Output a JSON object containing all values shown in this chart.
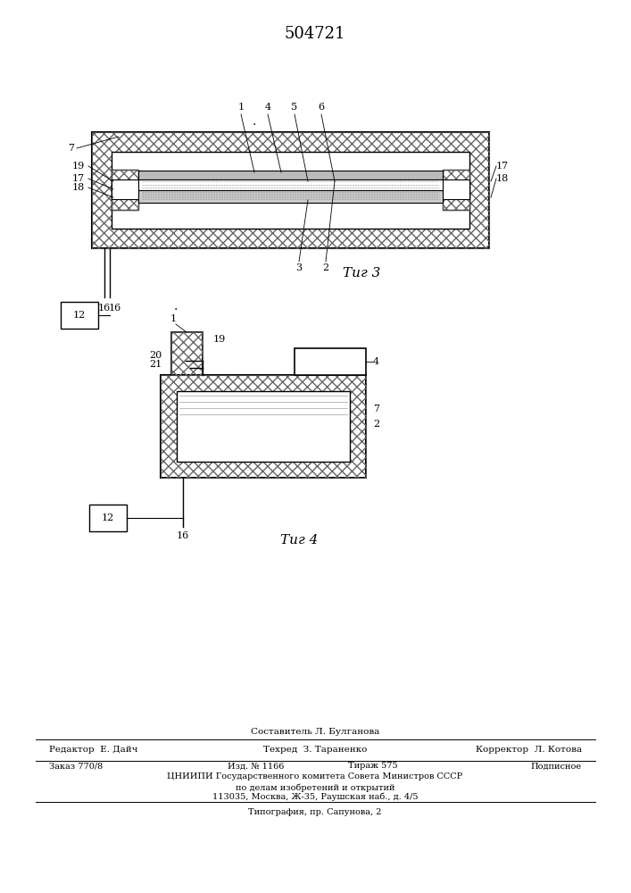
{
  "patent_number": "504721",
  "fig3_caption": "Τиг 3",
  "fig4_caption": "Τиг 4",
  "footer_line1": "Составитель Л. Булганова",
  "footer_line2_left": "Редактор  Е. Дайч",
  "footer_line2_mid": "Техред  З. Тараненко",
  "footer_line2_right": "Корректор  Л. Котова",
  "footer_line3_left": "Заказ 770/8",
  "footer_line3_mid1": "Изд. № 1166",
  "footer_line3_mid2": "Тираж 575",
  "footer_line3_right": "Подписное",
  "footer_line4": "ЦНИИПИ Государственного комитета Совета Министров СССР",
  "footer_line5": "по делам изобретений и открытий",
  "footer_line6": "113035, Москва, Ж-35, Раушская наб., д. 4/5",
  "footer_line7": "Типография, пр. Сапунова, 2",
  "bg_color": "#ffffff",
  "line_color": "#000000"
}
